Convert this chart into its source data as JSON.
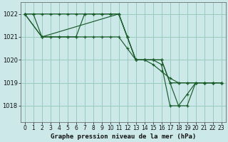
{
  "title": "Graphe pression niveau de la mer (hPa)",
  "bg_color": "#cce8e8",
  "grid_color": "#99ccbb",
  "line_color": "#1a5c2a",
  "xlim": [
    -0.5,
    23.5
  ],
  "ylim": [
    1017.3,
    1022.5
  ],
  "yticks": [
    1018,
    1019,
    1020,
    1021,
    1022
  ],
  "xticks": [
    0,
    1,
    2,
    3,
    4,
    5,
    6,
    7,
    8,
    9,
    10,
    11,
    12,
    13,
    14,
    15,
    16,
    17,
    18,
    19,
    20,
    21,
    22,
    23
  ],
  "series": [
    {
      "x": [
        0,
        1,
        2,
        3,
        4,
        5,
        6,
        7,
        8,
        9,
        10,
        11,
        12,
        13,
        14,
        15,
        16,
        17,
        18,
        19,
        20,
        21,
        22,
        23
      ],
      "y": [
        1022,
        1022,
        1022,
        1022,
        1022,
        1022,
        1022,
        1022,
        1022,
        1022,
        1022,
        1022,
        1021,
        1020,
        1020,
        1020,
        1020,
        1019,
        1019,
        1019,
        1019,
        1019,
        1019,
        1019
      ]
    },
    {
      "x": [
        0,
        1,
        2,
        3,
        4,
        5,
        6,
        7,
        8,
        9,
        10,
        11,
        12,
        13,
        14,
        15,
        16,
        17,
        18,
        19,
        20,
        21,
        22,
        23
      ],
      "y": [
        1022,
        1022,
        1021,
        1021,
        1021,
        1021,
        1021,
        1021,
        1021,
        1021,
        1021,
        1021,
        1020.5,
        1020,
        1020,
        1019.8,
        1019.5,
        1019.2,
        1019,
        1019,
        1019,
        1019,
        1019,
        1019
      ]
    },
    {
      "x": [
        0,
        2,
        3,
        4,
        5,
        6,
        7,
        8,
        9,
        10,
        11,
        12,
        13,
        14,
        15,
        16,
        17,
        18,
        19,
        20,
        21,
        22,
        23
      ],
      "y": [
        1022,
        1021,
        1021,
        1021,
        1021,
        1021,
        1022,
        1022,
        1022,
        1022,
        1022,
        1021,
        1020,
        1020,
        1020,
        1020,
        1019,
        1018,
        1018,
        1019,
        1019,
        1019,
        1019
      ]
    },
    {
      "x": [
        0,
        2,
        11,
        12,
        13,
        14,
        15,
        16,
        17,
        18,
        19,
        20,
        21,
        22,
        23
      ],
      "y": [
        1022,
        1021,
        1022,
        1021,
        1020,
        1020,
        1020,
        1019.8,
        1018,
        1018,
        1018.5,
        1019,
        1019,
        1019,
        1019
      ]
    }
  ]
}
